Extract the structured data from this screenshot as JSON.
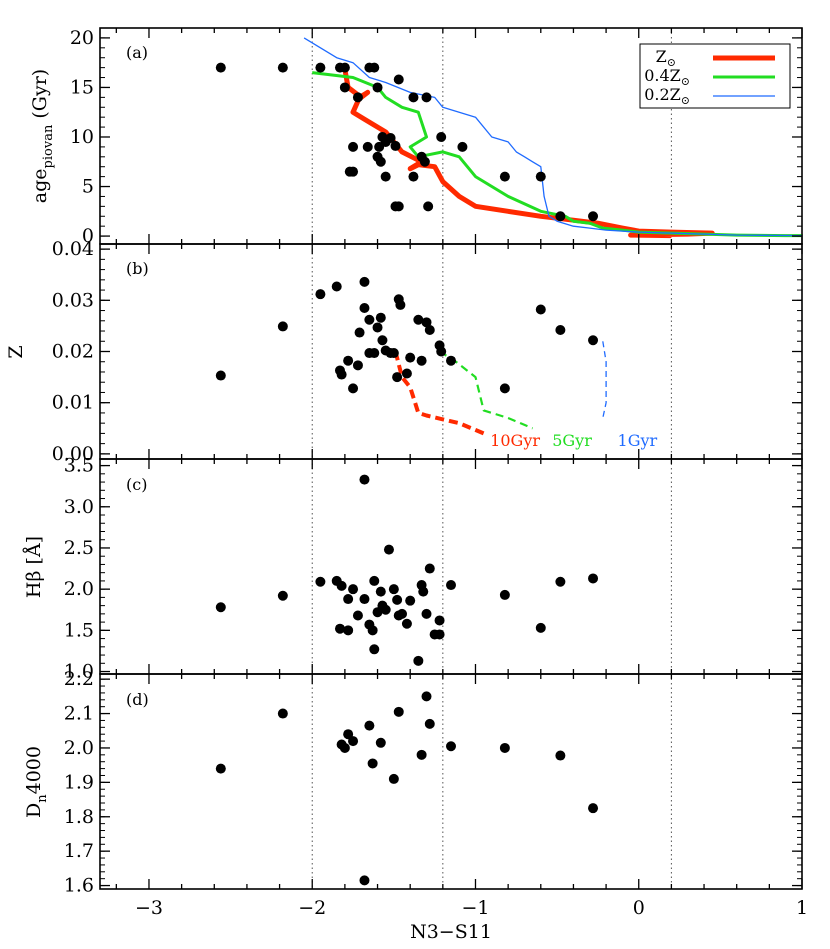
{
  "chart_data": {
    "type": "scatter",
    "xlabel": "N3−S11",
    "xlim": [
      -3.3,
      1.0
    ],
    "xticks": [
      -3,
      -2,
      -1,
      0,
      1
    ],
    "vlines": [
      -2.0,
      -1.2,
      0.2
    ],
    "panels": [
      {
        "id": "a",
        "label": "(a)",
        "ylabel_main": "age",
        "ylabel_sub": "piovan",
        "ylabel_unit": " (Gyr)",
        "ylim": [
          -0.8,
          21
        ],
        "yticks": [
          0,
          5,
          10,
          15,
          20
        ],
        "points": [
          [
            -2.56,
            17
          ],
          [
            -2.18,
            17
          ],
          [
            -1.95,
            17
          ],
          [
            -1.83,
            17
          ],
          [
            -1.8,
            17
          ],
          [
            -1.65,
            17
          ],
          [
            -1.62,
            17
          ],
          [
            -1.8,
            15
          ],
          [
            -1.72,
            14
          ],
          [
            -1.6,
            15
          ],
          [
            -1.38,
            14
          ],
          [
            -1.47,
            15.8
          ],
          [
            -1.3,
            14
          ],
          [
            -1.57,
            10
          ],
          [
            -1.52,
            9.9
          ],
          [
            -1.59,
            9
          ],
          [
            -1.49,
            9.1
          ],
          [
            -1.55,
            9.5
          ],
          [
            -1.75,
            9
          ],
          [
            -1.66,
            9
          ],
          [
            -1.6,
            8
          ],
          [
            -1.77,
            6.5
          ],
          [
            -1.75,
            6.5
          ],
          [
            -1.55,
            6
          ],
          [
            -1.38,
            6
          ],
          [
            -1.31,
            7.5
          ],
          [
            -1.33,
            8
          ],
          [
            -1.21,
            10
          ],
          [
            -1.58,
            7.5
          ],
          [
            -1.49,
            3
          ],
          [
            -1.47,
            3
          ],
          [
            -1.29,
            3
          ],
          [
            -1.08,
            9
          ],
          [
            -0.82,
            6
          ],
          [
            -0.6,
            6
          ],
          [
            -0.48,
            2
          ],
          [
            -0.28,
            2
          ]
        ],
        "curves": [
          {
            "name": "Z⊙",
            "color": "#ff2a00",
            "width": 5,
            "dash": "",
            "x": [
              -1.8,
              -1.78,
              -1.7,
              -1.66,
              -1.71,
              -1.75,
              -1.68,
              -1.55,
              -1.45,
              -1.33,
              -1.4,
              -1.35,
              -1.25,
              -1.2,
              -1.1,
              -1.0,
              -0.8,
              -0.6,
              -0.4,
              -0.25,
              -0.1,
              0.0,
              0.2,
              0.45,
              0.3,
              0.1,
              -0.05,
              0.2
            ],
            "y": [
              16.8,
              15,
              14,
              14.5,
              14,
              12.5,
              11.8,
              10.5,
              8.5,
              7.5,
              6.8,
              7.2,
              7,
              5.5,
              4,
              3,
              2.5,
              2,
              1.6,
              1.3,
              0.8,
              0.5,
              0.4,
              0.3,
              0.2,
              0.15,
              0.1,
              0.05
            ]
          },
          {
            "name": "0.4Z⊙",
            "color": "#22dd22",
            "width": 3,
            "dash": "",
            "x": [
              -2.0,
              -1.75,
              -1.6,
              -1.55,
              -1.45,
              -1.35,
              -1.3,
              -1.4,
              -1.35,
              -1.2,
              -1.1,
              -1.0,
              -0.8,
              -0.6,
              -0.45,
              -0.4,
              -0.3,
              -0.22,
              -0.1,
              0.0,
              0.2,
              0.4,
              0.6,
              0.9,
              1.0
            ],
            "y": [
              16.5,
              16,
              15,
              14,
              13,
              12.5,
              10,
              9,
              8,
              8.5,
              8,
              6,
              4,
              2.5,
              2,
              1.5,
              1.3,
              0.8,
              0.6,
              0.4,
              0.3,
              0.2,
              0.1,
              0.05,
              0.05
            ]
          },
          {
            "name": "0.2Z⊙",
            "color": "#1f6bff",
            "width": 1.3,
            "dash": "",
            "x": [
              -2.05,
              -1.85,
              -1.75,
              -1.65,
              -1.55,
              -1.4,
              -1.25,
              -1.2,
              -1.0,
              -0.9,
              -0.8,
              -0.75,
              -0.7,
              -0.65,
              -0.6,
              -0.58,
              -0.55,
              -0.5,
              -0.4,
              -0.3,
              -0.2,
              0.0,
              0.2,
              0.4,
              0.6,
              1.0
            ],
            "y": [
              20,
              18,
              17.5,
              16,
              15.5,
              14.5,
              14,
              13,
              12,
              10,
              9.5,
              8.5,
              8,
              7.5,
              7,
              4,
              2,
              1.5,
              1.0,
              0.8,
              0.6,
              0.4,
              0.3,
              0.2,
              0.1,
              0.05
            ]
          }
        ],
        "legend": {
          "position": "top-right",
          "entries": [
            {
              "main": "Z",
              "sub": "⊙",
              "color": "#ff2a00",
              "width": 5
            },
            {
              "main": "0.4Z",
              "sub": "⊙",
              "color": "#22dd22",
              "width": 3
            },
            {
              "main": "0.2Z",
              "sub": "⊙",
              "color": "#1f6bff",
              "width": 1.3
            }
          ]
        }
      },
      {
        "id": "b",
        "label": "(b)",
        "ylabel_main": "Z",
        "ylim": [
          -0.001,
          0.041
        ],
        "yticks": [
          0.0,
          0.01,
          0.02,
          0.03,
          0.04
        ],
        "yticklabels": [
          "0.00",
          "0.01",
          "0.02",
          "0.03",
          "0.04"
        ],
        "points": [
          [
            -2.56,
            0.0153
          ],
          [
            -2.18,
            0.0249
          ],
          [
            -1.95,
            0.0312
          ],
          [
            -1.85,
            0.0327
          ],
          [
            -1.68,
            0.0336
          ],
          [
            -1.83,
            0.0163
          ],
          [
            -1.82,
            0.0155
          ],
          [
            -1.78,
            0.0182
          ],
          [
            -1.75,
            0.0128
          ],
          [
            -1.72,
            0.0173
          ],
          [
            -1.71,
            0.0237
          ],
          [
            -1.65,
            0.0197
          ],
          [
            -1.6,
            0.0247
          ],
          [
            -1.68,
            0.0285
          ],
          [
            -1.65,
            0.0262
          ],
          [
            -1.62,
            0.0197
          ],
          [
            -1.58,
            0.0266
          ],
          [
            -1.57,
            0.0222
          ],
          [
            -1.55,
            0.0202
          ],
          [
            -1.52,
            0.0197
          ],
          [
            -1.47,
            0.0302
          ],
          [
            -1.46,
            0.0291
          ],
          [
            -1.42,
            0.0157
          ],
          [
            -1.5,
            0.0197
          ],
          [
            -1.4,
            0.0188
          ],
          [
            -1.35,
            0.0262
          ],
          [
            -1.3,
            0.0257
          ],
          [
            -1.28,
            0.0242
          ],
          [
            -1.22,
            0.0212
          ],
          [
            -1.21,
            0.02
          ],
          [
            -1.15,
            0.0182
          ],
          [
            -1.33,
            0.0182
          ],
          [
            -1.48,
            0.015
          ],
          [
            -0.82,
            0.0128
          ],
          [
            -0.6,
            0.0282
          ],
          [
            -0.48,
            0.0242
          ],
          [
            -0.28,
            0.0222
          ]
        ],
        "curves": [
          {
            "name": "10Gyr",
            "color": "#ff2a00",
            "width": 4,
            "dash": "9,5",
            "x": [
              -1.49,
              -1.45,
              -1.4,
              -1.35,
              -1.3,
              -1.1,
              -0.95
            ],
            "y": [
              0.02,
              0.015,
              0.013,
              0.008,
              0.0075,
              0.006,
              0.004
            ]
          },
          {
            "name": "5Gyr",
            "color": "#22dd22",
            "width": 2.2,
            "dash": "8,5",
            "x": [
              -1.22,
              -1.12,
              -1.0,
              -0.95,
              -0.8,
              -0.65
            ],
            "y": [
              0.02,
              0.018,
              0.015,
              0.0085,
              0.007,
              0.005
            ]
          },
          {
            "name": "1Gyr",
            "color": "#1f6bff",
            "width": 1.3,
            "dash": "6,4",
            "x": [
              -0.22,
              -0.2,
              -0.2,
              -0.22
            ],
            "y": [
              0.022,
              0.018,
              0.01,
              0.007
            ]
          }
        ],
        "annotations": [
          {
            "text": "10Gyr",
            "x": -0.91,
            "y": 0.0015,
            "color": "#ff2a00"
          },
          {
            "text": "5Gyr",
            "x": -0.53,
            "y": 0.0015,
            "color": "#22dd22"
          },
          {
            "text": "1Gyr",
            "x": -0.13,
            "y": 0.0015,
            "color": "#1f6bff"
          }
        ]
      },
      {
        "id": "c",
        "label": "(c)",
        "ylabel_main": "Hβ [Å]",
        "ylim": [
          0.97,
          3.58
        ],
        "yticks": [
          1.0,
          1.5,
          2.0,
          2.5,
          3.0,
          3.5
        ],
        "yticklabels": [
          "1.0",
          "1.5",
          "2.0",
          "2.5",
          "3.0",
          "3.5"
        ],
        "points": [
          [
            -2.56,
            1.78
          ],
          [
            -2.18,
            1.92
          ],
          [
            -1.95,
            2.09
          ],
          [
            -1.85,
            2.1
          ],
          [
            -1.82,
            2.04
          ],
          [
            -1.78,
            1.88
          ],
          [
            -1.75,
            2.0
          ],
          [
            -1.72,
            1.68
          ],
          [
            -1.68,
            3.33
          ],
          [
            -1.83,
            1.52
          ],
          [
            -1.78,
            1.5
          ],
          [
            -1.68,
            1.88
          ],
          [
            -1.65,
            1.57
          ],
          [
            -1.62,
            2.1
          ],
          [
            -1.63,
            1.5
          ],
          [
            -1.62,
            1.27
          ],
          [
            -1.6,
            1.72
          ],
          [
            -1.58,
            1.97
          ],
          [
            -1.57,
            1.8
          ],
          [
            -1.55,
            1.75
          ],
          [
            -1.53,
            2.48
          ],
          [
            -1.5,
            2.0
          ],
          [
            -1.48,
            1.87
          ],
          [
            -1.47,
            1.68
          ],
          [
            -1.45,
            1.7
          ],
          [
            -1.42,
            1.58
          ],
          [
            -1.4,
            1.86
          ],
          [
            -1.35,
            1.13
          ],
          [
            -1.33,
            2.05
          ],
          [
            -1.32,
            1.97
          ],
          [
            -1.3,
            1.7
          ],
          [
            -1.28,
            2.25
          ],
          [
            -1.25,
            1.45
          ],
          [
            -1.22,
            1.62
          ],
          [
            -1.22,
            1.45
          ],
          [
            -1.15,
            2.05
          ],
          [
            -0.82,
            1.93
          ],
          [
            -0.6,
            1.53
          ],
          [
            -0.48,
            2.09
          ],
          [
            -0.28,
            2.13
          ]
        ]
      },
      {
        "id": "d",
        "label": "(d)",
        "ylabel_main": "D",
        "ylabel_sub": "n",
        "ylabel_unit": "4000",
        "ylim": [
          1.59,
          2.215
        ],
        "yticks": [
          1.6,
          1.7,
          1.8,
          1.9,
          2.0,
          2.1,
          2.2
        ],
        "yticklabels": [
          "1.6",
          "1.7",
          "1.8",
          "1.9",
          "2.0",
          "2.1",
          "2.2"
        ],
        "points": [
          [
            -2.56,
            1.94
          ],
          [
            -2.18,
            2.1
          ],
          [
            -1.82,
            2.01
          ],
          [
            -1.8,
            2.0
          ],
          [
            -1.78,
            2.04
          ],
          [
            -1.75,
            2.02
          ],
          [
            -1.65,
            2.065
          ],
          [
            -1.63,
            1.955
          ],
          [
            -1.58,
            2.015
          ],
          [
            -1.68,
            1.615
          ],
          [
            -1.5,
            1.91
          ],
          [
            -1.47,
            2.105
          ],
          [
            -1.33,
            1.98
          ],
          [
            -1.3,
            2.15
          ],
          [
            -1.28,
            2.07
          ],
          [
            -1.15,
            2.005
          ],
          [
            -0.82,
            2.0
          ],
          [
            -0.48,
            1.978
          ],
          [
            -0.28,
            1.825
          ]
        ]
      }
    ]
  }
}
